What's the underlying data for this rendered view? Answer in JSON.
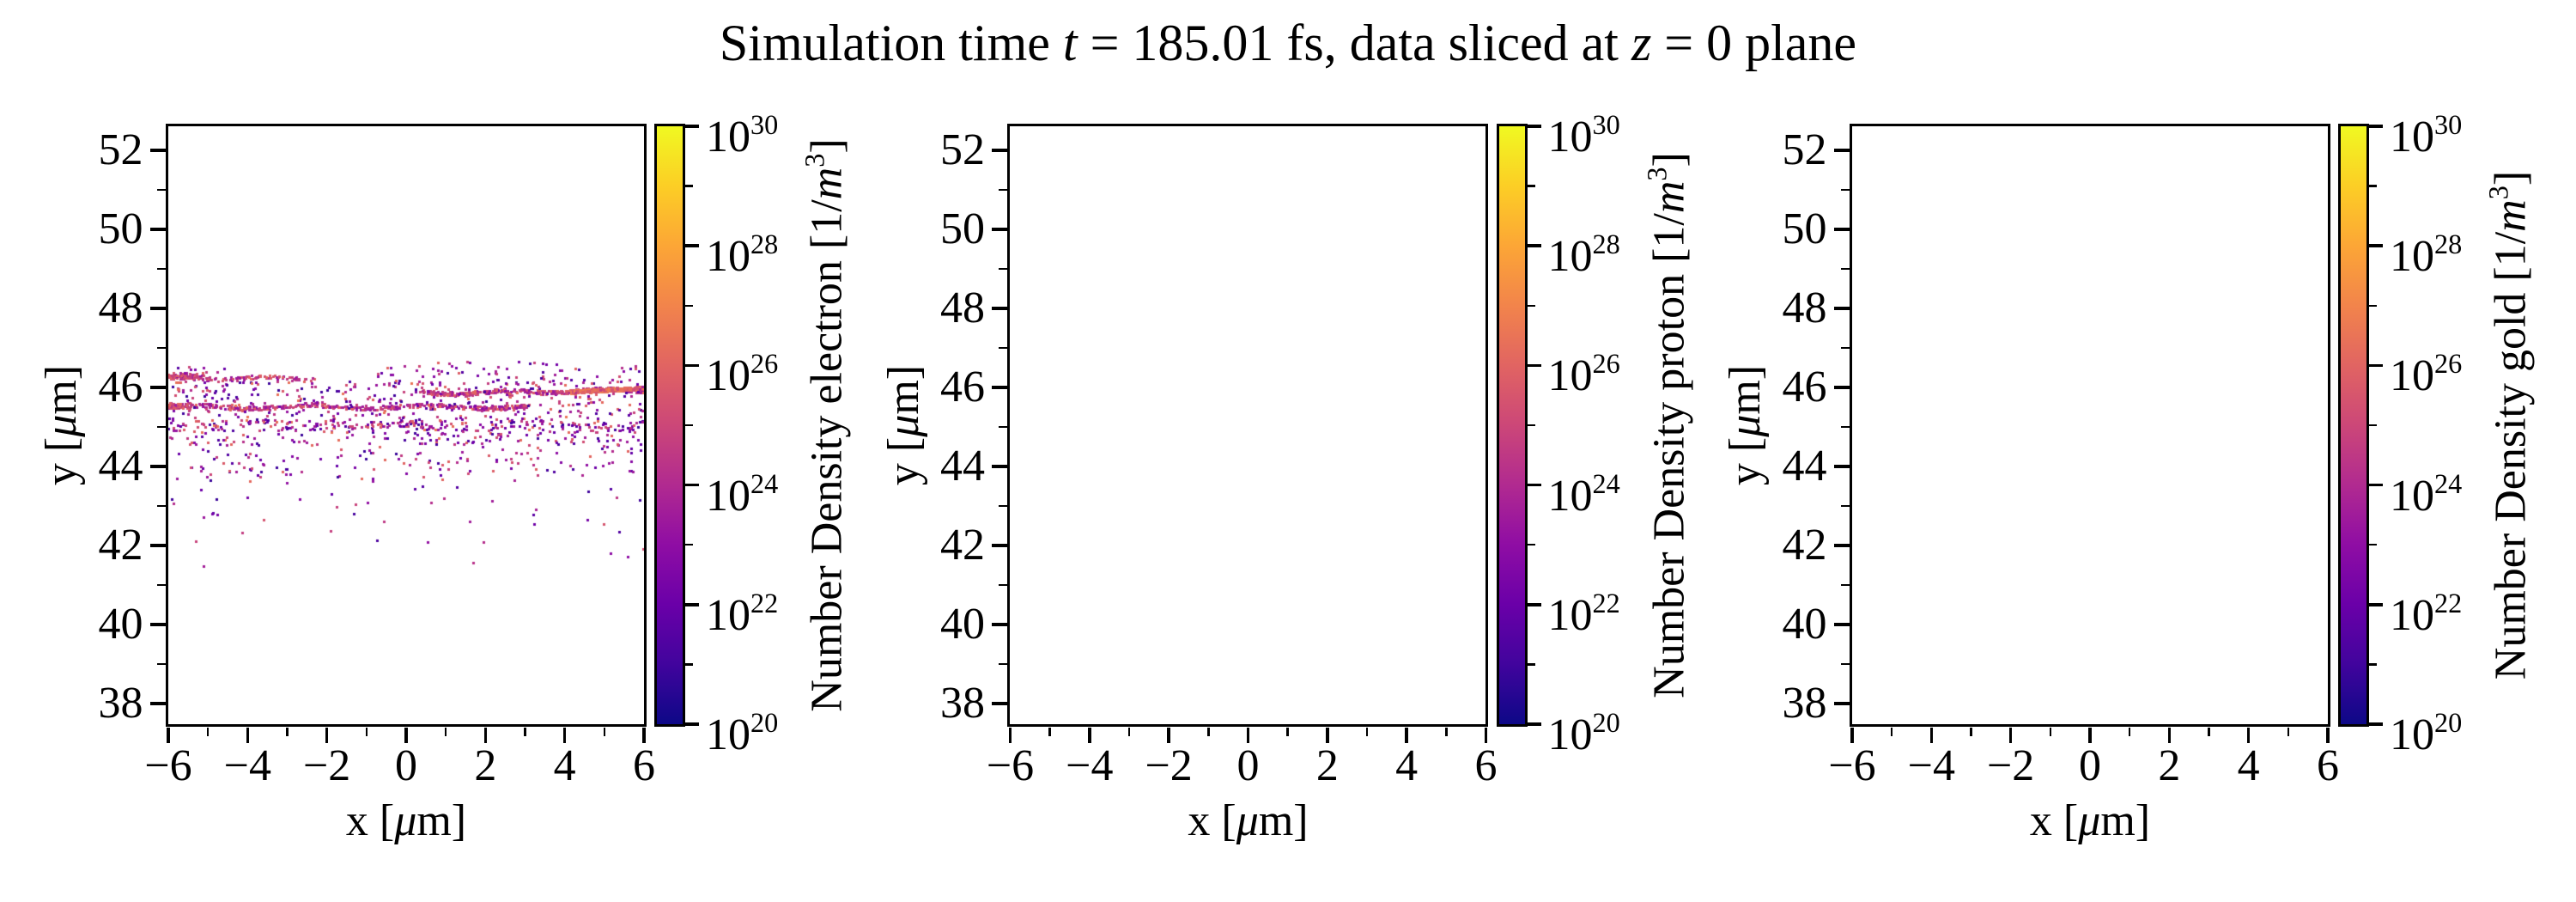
{
  "title": {
    "parts": [
      {
        "t": "Simulation time "
      },
      {
        "t": "t",
        "italic": true
      },
      {
        "t": " = 185.01 fs, data sliced at "
      },
      {
        "t": "z",
        "italic": true
      },
      {
        "t": " = 0 plane"
      }
    ],
    "plain": "Simulation time t = 185.01 fs, data sliced at z = 0 plane"
  },
  "axes_common": {
    "x_label_parts": [
      {
        "t": "x ["
      },
      {
        "t": "μ",
        "italic": true
      },
      {
        "t": "m]"
      }
    ],
    "y_label_parts": [
      {
        "t": "y ["
      },
      {
        "t": "μ",
        "italic": true
      },
      {
        "t": "m]"
      }
    ],
    "x_tick_values": [
      -6,
      -4,
      -2,
      0,
      2,
      4,
      6
    ],
    "x_tick_labels": [
      "−6",
      "−4",
      "−2",
      "0",
      "2",
      "4",
      "6"
    ],
    "x_minor_values": [
      -5,
      -3,
      -1,
      1,
      3,
      5
    ],
    "y_tick_values": [
      38,
      40,
      42,
      44,
      46,
      48,
      50,
      52
    ],
    "y_tick_labels": [
      "38",
      "40",
      "42",
      "44",
      "46",
      "48",
      "50",
      "52"
    ],
    "y_minor_values": [
      39,
      41,
      43,
      45,
      47,
      49,
      51
    ]
  },
  "colorbar_common": {
    "tick_exponents": [
      20,
      22,
      24,
      26,
      28,
      30
    ],
    "tick_label_parts": [
      [
        {
          "t": "10"
        },
        {
          "t": "20",
          "sup": true
        }
      ],
      [
        {
          "t": "10"
        },
        {
          "t": "22",
          "sup": true
        }
      ],
      [
        {
          "t": "10"
        },
        {
          "t": "24",
          "sup": true
        }
      ],
      [
        {
          "t": "10"
        },
        {
          "t": "26",
          "sup": true
        }
      ],
      [
        {
          "t": "10"
        },
        {
          "t": "28",
          "sup": true
        }
      ],
      [
        {
          "t": "10"
        },
        {
          "t": "30",
          "sup": true
        }
      ]
    ],
    "minor_exponents": [
      21,
      23,
      25,
      27,
      29
    ],
    "scale": "log",
    "range_exponents": [
      20,
      30
    ],
    "colormap": "plasma"
  },
  "panels": [
    {
      "species": "electron",
      "cbar_label_parts": [
        {
          "t": "Number Density electron [1/"
        },
        {
          "t": "m",
          "italic": true
        },
        {
          "t": "3",
          "sup": true
        },
        {
          "t": "]"
        }
      ],
      "cbar_label_plain": "Number Density electron [1/m³]"
    },
    {
      "species": "proton",
      "cbar_label_parts": [
        {
          "t": "Number Density proton [1/"
        },
        {
          "t": "m",
          "italic": true
        },
        {
          "t": "3",
          "sup": true
        },
        {
          "t": "]"
        }
      ],
      "cbar_label_plain": "Number Density proton [1/m³]"
    },
    {
      "species": "gold",
      "cbar_label_parts": [
        {
          "t": "Number Density gold [1/"
        },
        {
          "t": "m",
          "italic": true
        },
        {
          "t": "3",
          "sup": true
        },
        {
          "t": "]"
        }
      ],
      "cbar_label_plain": "Number Density gold [1/m³]"
    }
  ],
  "chart_data": {
    "type": "scatter",
    "title": "Simulation time t = 185.01 fs, data sliced at z = 0 plane",
    "xlabel": "x [μm]",
    "ylabel": "y [μm]",
    "xlim": [
      -6,
      6
    ],
    "ylim": [
      37.48,
      52.61
    ],
    "grid": false,
    "legend": false,
    "colormap": "plasma",
    "color_scale_exponents": [
      20,
      30
    ],
    "marker": "square",
    "marker_px": 3,
    "random_seed": 42,
    "panels": [
      {
        "name": "electron",
        "empty": false,
        "features": [
          {
            "kind": "line",
            "x_range": [
              -6.0,
              -2.3
            ],
            "y": 46.22,
            "jitter": 0.05,
            "per_unit": 34,
            "t_range": [
              0.3,
              0.62
            ],
            "size": 3,
            "wave_amp": 0.03,
            "wave_len": 2.2,
            "phase": 1.0
          },
          {
            "kind": "line",
            "x_range": [
              -6.0,
              -5.1
            ],
            "y": 46.28,
            "jitter": 0.07,
            "per_unit": 70,
            "t_range": [
              0.3,
              0.6
            ],
            "size": 3
          },
          {
            "kind": "line",
            "x_range": [
              -6.0,
              3.1
            ],
            "y": 45.5,
            "jitter": 0.05,
            "per_unit": 46,
            "t_range": [
              0.28,
              0.62
            ],
            "size": 3,
            "wave_amp": 0.045,
            "wave_len": 3.0,
            "phase": 0.4
          },
          {
            "kind": "line",
            "x_range": [
              -6.0,
              -5.5
            ],
            "y": 45.52,
            "jitter": 0.06,
            "per_unit": 90,
            "t_range": [
              0.35,
              0.62
            ],
            "size": 3
          },
          {
            "kind": "line",
            "x_range": [
              0.4,
              6.0
            ],
            "y": 45.84,
            "y_end": 45.93,
            "jitter": 0.05,
            "per_unit": 55,
            "t_range": [
              0.3,
              0.62
            ],
            "size": 3,
            "wave_amp": 0.035,
            "wave_len": 2.4,
            "phase": 2.2
          },
          {
            "kind": "line",
            "x_range": [
              4.1,
              6.0
            ],
            "y": 45.88,
            "y_end": 45.97,
            "jitter": 0.03,
            "per_unit": 130,
            "t_range": [
              0.5,
              0.7
            ],
            "size": 4
          },
          {
            "kind": "line",
            "x_range": [
              -6.0,
              6.0
            ],
            "y": 45.03,
            "jitter": 0.1,
            "per_unit": 14,
            "t_range": [
              0.1,
              0.6
            ],
            "size": 3,
            "wave_amp": 0.06,
            "wave_len": 3.5,
            "phase": 4.0
          },
          {
            "kind": "band",
            "x_range": [
              -6.0,
              6.0
            ],
            "y_range": [
              44.55,
              46.15
            ],
            "count": 640,
            "t_range": [
              0.08,
              0.66
            ],
            "size": 3
          },
          {
            "kind": "band",
            "x_range": [
              -6.0,
              6.0
            ],
            "y_range": [
              43.6,
              44.55
            ],
            "count": 150,
            "t_range": [
              0.08,
              0.62
            ],
            "size": 3
          },
          {
            "kind": "band",
            "x_range": [
              -6.0,
              6.0
            ],
            "y_range": [
              42.5,
              43.6
            ],
            "count": 34,
            "t_range": [
              0.08,
              0.6
            ],
            "size": 3
          },
          {
            "kind": "band",
            "x_range": [
              -6.0,
              6.0
            ],
            "y_range": [
              41.4,
              42.5
            ],
            "count": 12,
            "t_range": [
              0.1,
              0.55
            ],
            "size": 3
          },
          {
            "kind": "band",
            "x_range": [
              -0.8,
              6.0
            ],
            "y_range": [
              46.15,
              46.65
            ],
            "count": 70,
            "t_range": [
              0.1,
              0.62
            ],
            "size": 3
          },
          {
            "kind": "band",
            "x_range": [
              -6.0,
              -4.3
            ],
            "y_range": [
              46.35,
              46.55
            ],
            "count": 10,
            "t_range": [
              0.15,
              0.55
            ],
            "size": 3
          }
        ]
      },
      {
        "name": "proton",
        "empty": true,
        "features": []
      },
      {
        "name": "gold",
        "empty": true,
        "features": []
      }
    ]
  }
}
